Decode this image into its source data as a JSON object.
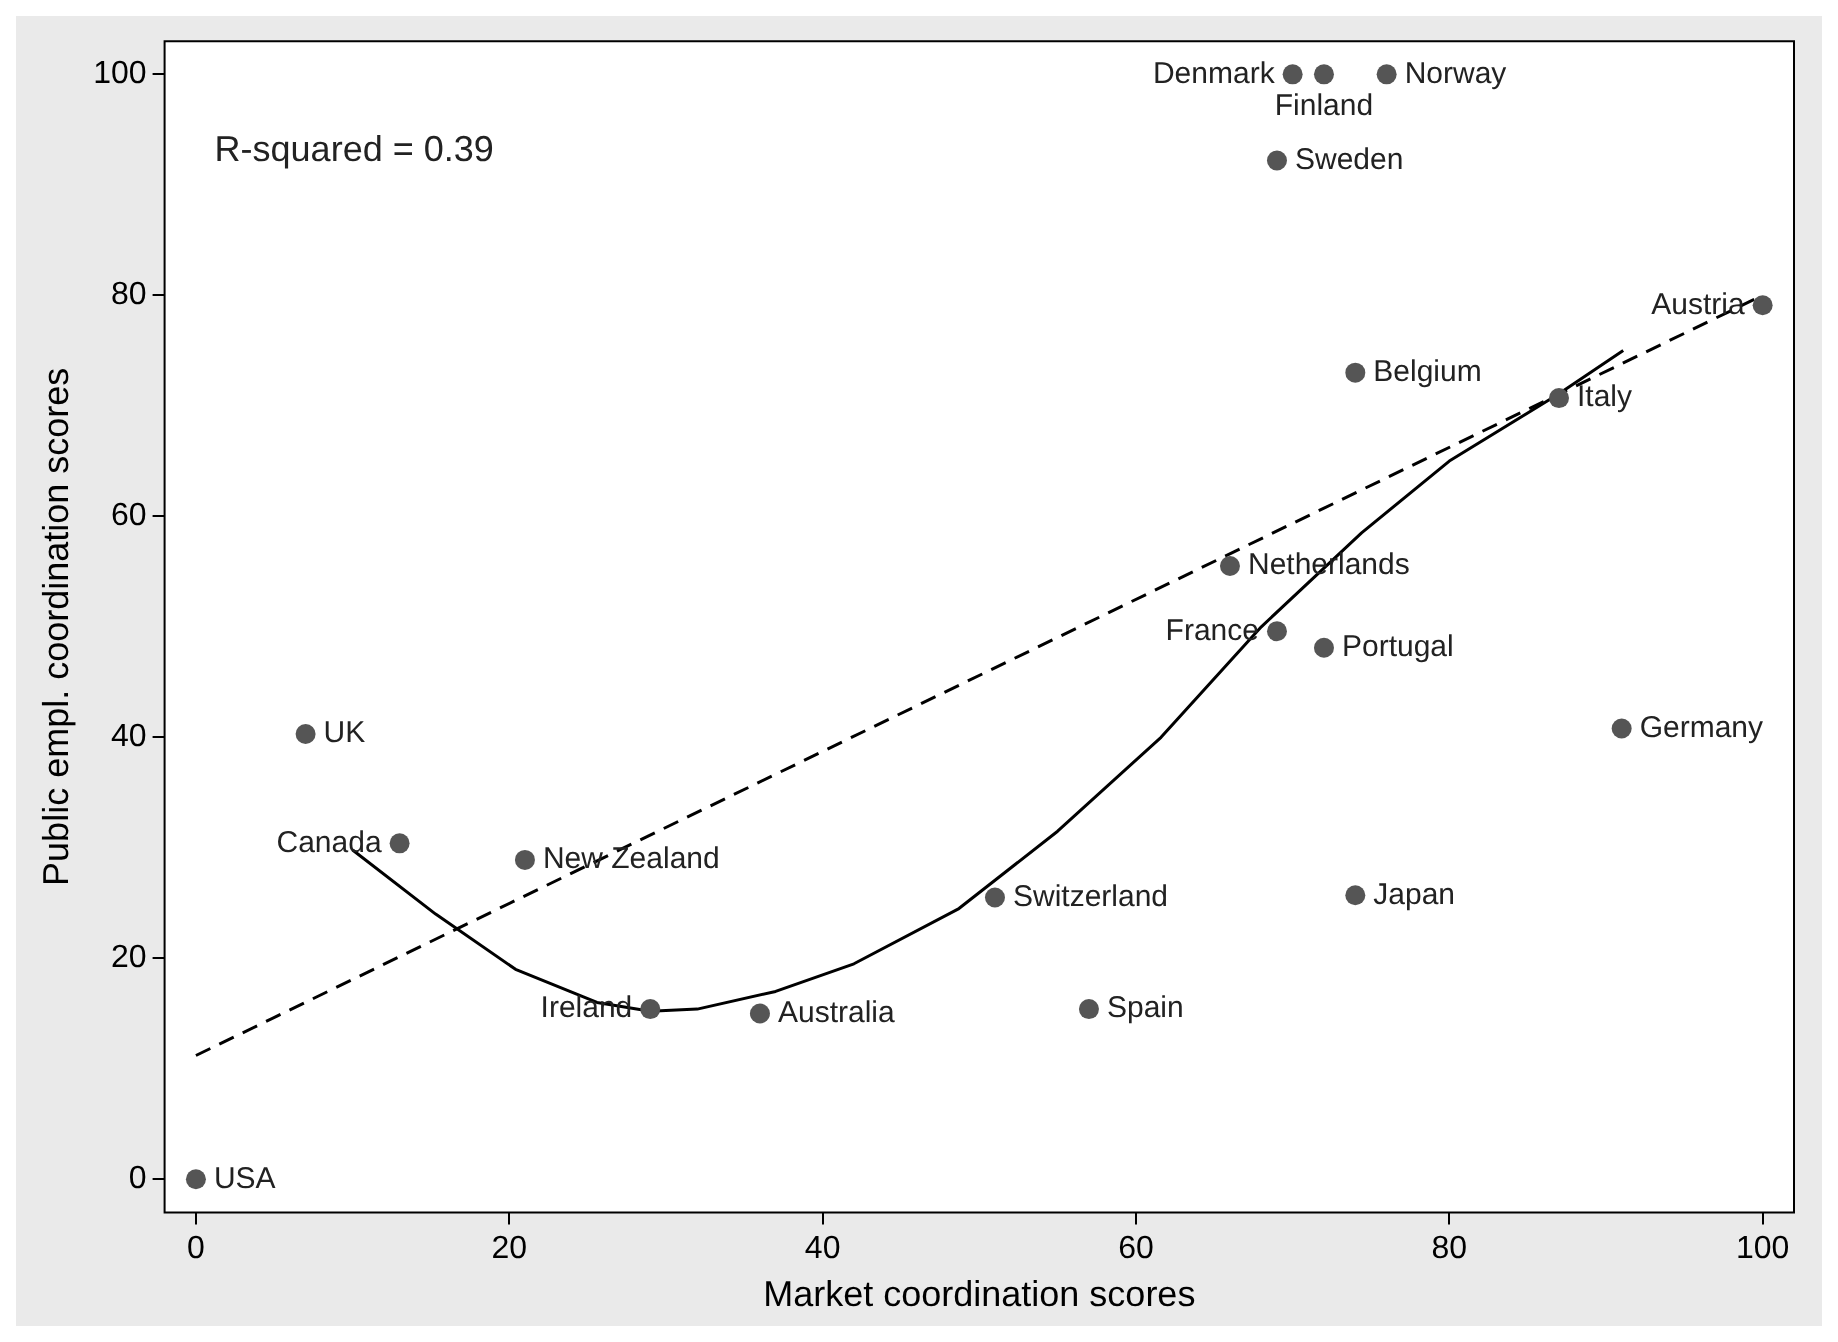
{
  "chart_data": {
    "type": "scatter",
    "xlabel": "Market coordination scores",
    "ylabel": "Public empl. coordination scores",
    "xlim": [
      -2,
      102
    ],
    "ylim": [
      -3,
      103
    ],
    "xticks": [
      0,
      20,
      40,
      60,
      80,
      100
    ],
    "yticks": [
      0,
      20,
      40,
      60,
      80,
      100
    ],
    "grid": false,
    "legend": false,
    "series": [
      {
        "color": "#555555",
        "marker": "circle",
        "x": [
          0,
          7,
          13,
          21,
          29,
          36,
          51,
          57,
          74,
          91,
          69,
          72,
          66,
          74,
          87,
          100,
          70,
          72,
          76,
          69
        ],
        "values": [
          0,
          40.3,
          30.4,
          28.9,
          15.4,
          15,
          25.5,
          15.4,
          25.7,
          40.8,
          49.6,
          48.1,
          55.5,
          73,
          70.7,
          79.1,
          100,
          100,
          100,
          92.2
        ]
      },
      {
        "type": "line",
        "color": "#000000",
        "line_style": "dashed",
        "marker": "none",
        "x": [
          0,
          100
        ],
        "values": [
          11.2,
          80
        ]
      },
      {
        "type": "line",
        "color": "#000000",
        "line_style": "solid",
        "marker": "none",
        "x": [
          10,
          15.3,
          20.4,
          25.6,
          29,
          32,
          37,
          42,
          48.7,
          55,
          61.6,
          68,
          74.4,
          80,
          86.9,
          91.1
        ],
        "values": [
          29.8,
          24,
          19,
          16,
          15.2,
          15.4,
          17,
          19.5,
          24.5,
          31.5,
          40,
          50,
          58.5,
          65,
          71,
          75
        ]
      }
    ],
    "annotations": [
      "R-squared = 0.39",
      {
        "text": "USA",
        "x": 0,
        "y": 0
      },
      {
        "text": "UK",
        "x": 7,
        "y": 40.3
      },
      {
        "text": "Canada",
        "x": 13,
        "y": 30.4
      },
      {
        "text": "New Zealand",
        "x": 21,
        "y": 28.9
      },
      {
        "text": "Ireland",
        "x": 29,
        "y": 15.4
      },
      {
        "text": "Australia",
        "x": 36,
        "y": 15
      },
      {
        "text": "Switzerland",
        "x": 51,
        "y": 25.5
      },
      {
        "text": "Spain",
        "x": 57,
        "y": 15.4
      },
      {
        "text": "Japan",
        "x": 74,
        "y": 25.7
      },
      {
        "text": "Germany",
        "x": 91,
        "y": 40.8
      },
      {
        "text": "France",
        "x": 69,
        "y": 49.6
      },
      {
        "text": "Portugal",
        "x": 72,
        "y": 48.1
      },
      {
        "text": "Netherlands",
        "x": 66,
        "y": 55.5
      },
      {
        "text": "Belgium",
        "x": 74,
        "y": 73
      },
      {
        "text": "Italy",
        "x": 87,
        "y": 70.7
      },
      {
        "text": "Austria",
        "x": 100,
        "y": 79.1
      },
      {
        "text": "Denmark",
        "x": 70,
        "y": 100
      },
      {
        "text": "Finland",
        "x": 72,
        "y": 100
      },
      {
        "text": "Norway",
        "x": 76,
        "y": 100
      },
      {
        "text": "Sweden",
        "x": 69,
        "y": 92.2
      }
    ]
  }
}
